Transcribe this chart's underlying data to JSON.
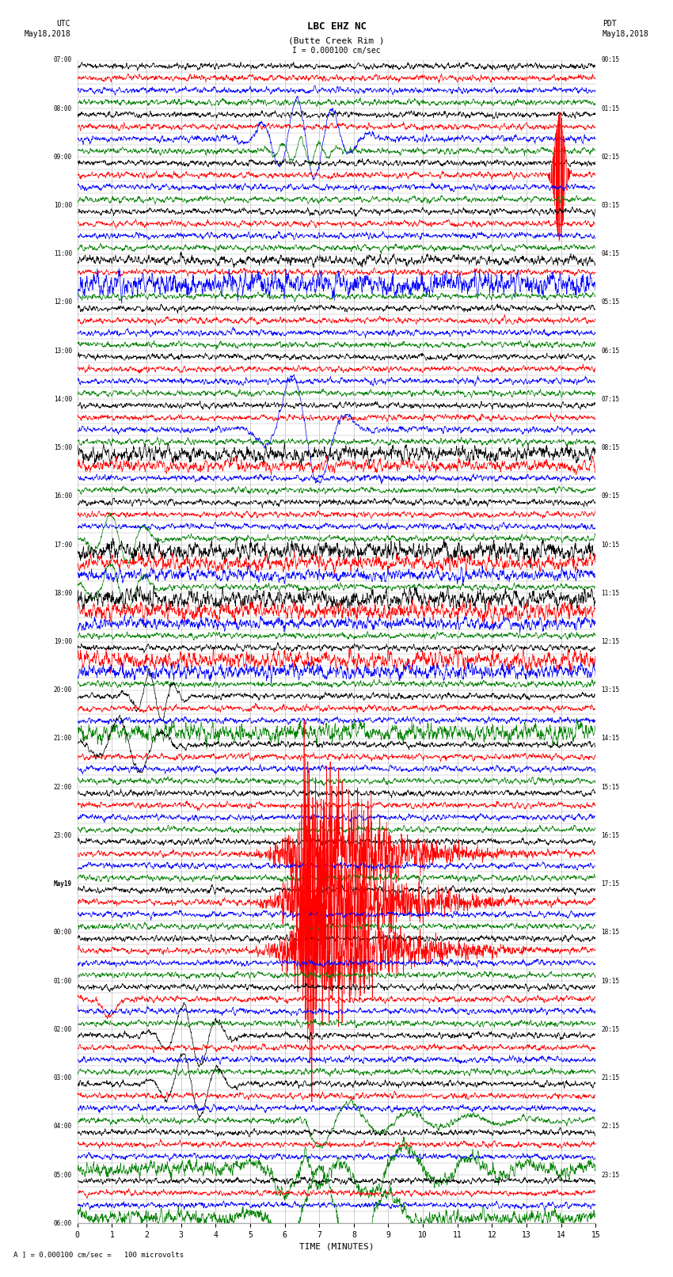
{
  "title_line1": "LBC EHZ NC",
  "title_line2": "(Butte Creek Rim )",
  "scale_label": "I = 0.000100 cm/sec",
  "left_label_top": "UTC",
  "left_label_date": "May18,2018",
  "right_label_top": "PDT",
  "right_label_date": "May18,2018",
  "bottom_label": "TIME (MINUTES)",
  "bottom_note": "A ] = 0.000100 cm/sec =   100 microvolts",
  "utc_hour_labels": [
    "07:00",
    "08:00",
    "09:00",
    "10:00",
    "11:00",
    "12:00",
    "13:00",
    "14:00",
    "15:00",
    "16:00",
    "17:00",
    "18:00",
    "19:00",
    "20:00",
    "21:00",
    "22:00",
    "23:00",
    "May19",
    "00:00",
    "01:00",
    "02:00",
    "03:00",
    "04:00",
    "05:00",
    "06:00"
  ],
  "pdt_hour_labels": [
    "00:15",
    "01:15",
    "02:15",
    "03:15",
    "04:15",
    "05:15",
    "06:15",
    "07:15",
    "08:15",
    "09:15",
    "10:15",
    "11:15",
    "12:15",
    "13:15",
    "14:15",
    "15:15",
    "16:15",
    "17:15",
    "18:15",
    "19:15",
    "20:15",
    "21:15",
    "22:15",
    "23:15"
  ],
  "n_rows": 96,
  "xmin": 0,
  "xmax": 15,
  "colors": [
    "black",
    "red",
    "blue",
    "green"
  ],
  "bg_color": "#ffffff",
  "grid_color": "#aaaaaa",
  "line_width": 0.5,
  "noise_amp": 0.12,
  "seed": 42
}
